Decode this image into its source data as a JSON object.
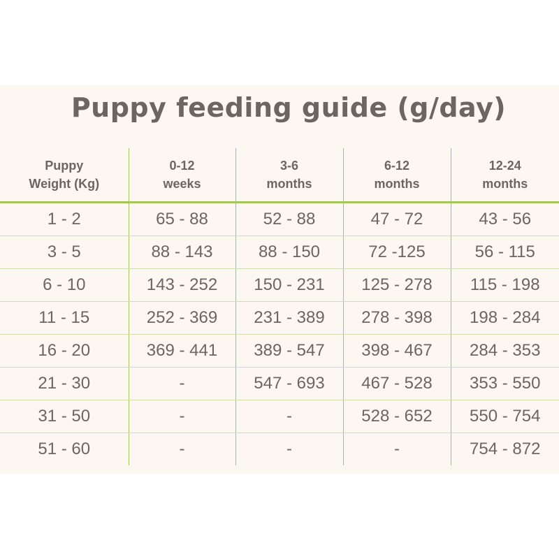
{
  "title": "Puppy feeding guide (g/day)",
  "headers": [
    [
      "Puppy",
      "Weight (Kg)"
    ],
    [
      "0-12",
      "weeks"
    ],
    [
      "3-6",
      "months"
    ],
    [
      "6-12",
      "months"
    ],
    [
      "12-24",
      "months"
    ]
  ],
  "rows": [
    [
      "1 - 2",
      "65 - 88",
      "52 - 88",
      "47 - 72",
      "43 - 56"
    ],
    [
      "3 - 5",
      "88 - 143",
      "88 - 150",
      "72 -125",
      "56 - 115"
    ],
    [
      "6  -  10",
      "143 - 252",
      "150 - 231",
      "125 - 278",
      "115 - 198"
    ],
    [
      "11  -  15",
      "252 - 369",
      "231 - 389",
      "278 - 398",
      "198 - 284"
    ],
    [
      "16 - 20",
      "369 - 441",
      "389 - 547",
      "398 - 467",
      "284 - 353"
    ],
    [
      "21 - 30",
      "-",
      "547 - 693",
      "467 - 528",
      "353 - 550"
    ],
    [
      "31 - 50",
      "-",
      "-",
      "528 - 652",
      "550 - 754"
    ],
    [
      "51 - 60",
      "-",
      "-",
      "-",
      "754 - 872"
    ]
  ],
  "colors": {
    "background": "#fcf8f1",
    "text": "#6b6661",
    "accent_line": "#a3c45e"
  }
}
